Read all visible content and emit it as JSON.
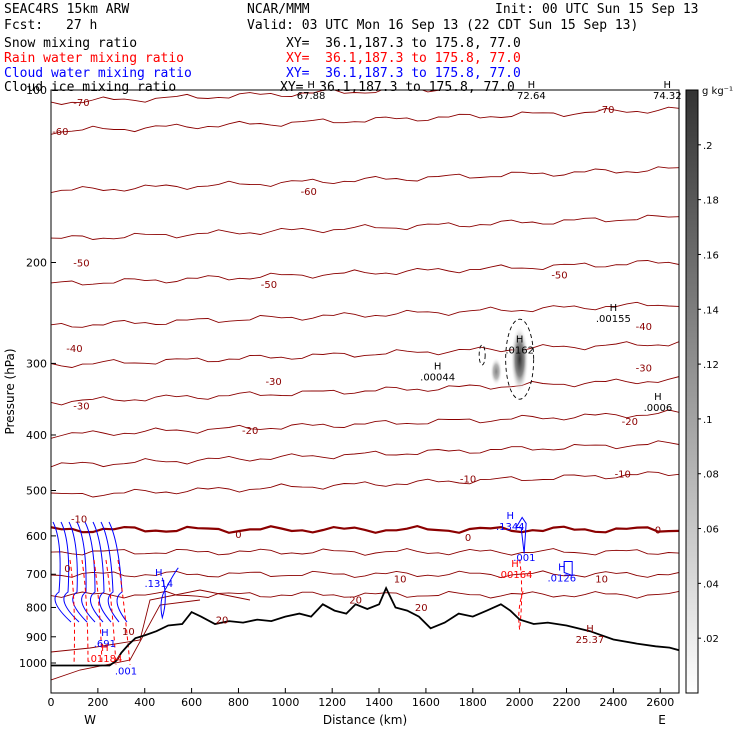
{
  "header": {
    "model": "SEAC4RS 15km ARW",
    "org": "NCAR/MMM",
    "init": "Init: 00 UTC Sun 15 Sep 13",
    "fcst_label": "Fcst:",
    "fcst_value": "27 h",
    "valid": "Valid: 03 UTC Mon 16 Sep 13 (22 CDT Sun 15 Sep 13)",
    "fields": [
      {
        "name": "Snow mixing ratio",
        "xy": "XY=  36.1,187.3 to 175.8, 77.0",
        "color": "#000000"
      },
      {
        "name": "Rain water mixing ratio",
        "xy": "XY=  36.1,187.3 to 175.8, 77.0",
        "color": "#ff0000"
      },
      {
        "name": "Cloud water mixing ratio",
        "xy": "XY=  36.1,187.3 to 175.8, 77.0",
        "color": "#0000ff"
      },
      {
        "name": "Cloud ice mixing ratio",
        "xy": "XY=  36.1,187.3 to 175.8, 77.0",
        "color": "#000000"
      }
    ]
  },
  "chart_data": {
    "type": "contour",
    "xlabel": "Distance (km)",
    "ylabel": "Pressure (hPa)",
    "xlim": [
      0,
      2680
    ],
    "ylim": [
      1000,
      100
    ],
    "y_scale": "log",
    "x_ticks": [
      "0",
      "200",
      "400",
      "600",
      "800",
      "1000",
      "1200",
      "1400",
      "1600",
      "1800",
      "2000",
      "2200",
      "2400",
      "2600"
    ],
    "y_ticks": [
      "100",
      "200",
      "300",
      "400",
      "500",
      "600",
      "700",
      "800",
      "900",
      "1000"
    ],
    "x_end_labels": {
      "left": "W",
      "right": "E"
    },
    "colorbar": {
      "unit": "g kg⁻¹",
      "ticks": [
        ".2",
        ".18",
        ".16",
        ".14",
        ".12",
        ".1",
        ".08",
        ".06",
        ".04",
        ".02"
      ],
      "position": "right"
    },
    "temperature_contours": {
      "color": "#8b0000",
      "labels": [
        {
          "value": "-70",
          "x": 130,
          "p": 105
        },
        {
          "value": "-70",
          "x": 2370,
          "p": 108
        },
        {
          "value": "-60",
          "x": 40,
          "p": 118
        },
        {
          "value": "-60",
          "x": 1100,
          "p": 150
        },
        {
          "value": "-50",
          "x": 130,
          "p": 200
        },
        {
          "value": "-50",
          "x": 930,
          "p": 218
        },
        {
          "value": "-50",
          "x": 2170,
          "p": 210
        },
        {
          "value": "-40",
          "x": 100,
          "p": 282
        },
        {
          "value": "-40",
          "x": 2530,
          "p": 258
        },
        {
          "value": "-30",
          "x": 130,
          "p": 355
        },
        {
          "value": "-30",
          "x": 950,
          "p": 322
        },
        {
          "value": "-30",
          "x": 2530,
          "p": 305
        },
        {
          "value": "-20",
          "x": 850,
          "p": 392
        },
        {
          "value": "-20",
          "x": 2470,
          "p": 378
        },
        {
          "value": "-10",
          "x": 1780,
          "p": 476
        },
        {
          "value": "-10",
          "x": 2440,
          "p": 467
        },
        {
          "value": "-10",
          "x": 120,
          "p": 560
        },
        {
          "value": "0",
          "x": 800,
          "p": 595
        },
        {
          "value": "0",
          "x": 1780,
          "p": 603
        },
        {
          "value": "0",
          "x": 2590,
          "p": 585
        },
        {
          "value": "0",
          "x": 70,
          "p": 682
        },
        {
          "value": "10",
          "x": 1490,
          "p": 712
        },
        {
          "value": "10",
          "x": 2350,
          "p": 712
        },
        {
          "value": "10",
          "x": 330,
          "p": 880
        },
        {
          "value": "20",
          "x": 730,
          "p": 840
        },
        {
          "value": "20",
          "x": 1300,
          "p": 775
        },
        {
          "value": "20",
          "x": 1580,
          "p": 798
        }
      ]
    },
    "extrema_labels": [
      {
        "mark": "H",
        "value": "67.88",
        "x": 1110,
        "p": 100,
        "color": "#000000"
      },
      {
        "mark": "H",
        "value": "72.64",
        "x": 2050,
        "p": 100,
        "color": "#000000"
      },
      {
        "mark": "H",
        "value": "74.32",
        "x": 2630,
        "p": 100,
        "color": "#000000"
      },
      {
        "mark": "H",
        "value": ".00044",
        "x": 1650,
        "p": 310,
        "color": "#000000"
      },
      {
        "mark": "H",
        "value": ".0162",
        "x": 2000,
        "p": 278,
        "color": "#000000"
      },
      {
        "mark": "H",
        "value": ".00155",
        "x": 2400,
        "p": 245,
        "color": "#000000"
      },
      {
        "mark": "H",
        "value": ".0006",
        "x": 2590,
        "p": 350,
        "color": "#000000"
      },
      {
        "mark": "H",
        "value": ".1344",
        "x": 1960,
        "p": 565,
        "color": "#0000ff"
      },
      {
        "mark": "",
        "value": ".001",
        "x": 2020,
        "p": 640,
        "color": "#0000ff"
      },
      {
        "mark": "H",
        "value": ".00164",
        "x": 1980,
        "p": 685,
        "color": "#ff0000"
      },
      {
        "mark": "H",
        "value": ".0126",
        "x": 2180,
        "p": 695,
        "color": "#0000ff"
      },
      {
        "mark": "H",
        "value": ".1314",
        "x": 460,
        "p": 710,
        "color": "#0000ff"
      },
      {
        "mark": "H",
        "value": "25.37",
        "x": 2300,
        "p": 890,
        "color": "#8b0000"
      },
      {
        "mark": "H",
        "value": ".691",
        "x": 230,
        "p": 905,
        "color": "#0000ff"
      },
      {
        "mark": "H",
        "value": ".01184",
        "x": 230,
        "p": 960,
        "color": "#ff0000"
      },
      {
        "mark": "",
        "value": ".001",
        "x": 320,
        "p": 1010,
        "color": "#0000ff"
      }
    ],
    "terrain": {
      "color": "#000000",
      "x": [
        0,
        250,
        280,
        300,
        330,
        360,
        400,
        450,
        500,
        560,
        600,
        640,
        700,
        760,
        820,
        880,
        940,
        1000,
        1060,
        1110,
        1160,
        1210,
        1260,
        1300,
        1350,
        1400,
        1430,
        1470,
        1520,
        1570,
        1620,
        1680,
        1740,
        1800,
        1860,
        1920,
        1960,
        2000,
        2060,
        2120,
        2200,
        2300,
        2400,
        2500,
        2580,
        2640,
        2680
      ],
      "p": [
        1010,
        1010,
        990,
        960,
        930,
        905,
        895,
        880,
        860,
        855,
        815,
        830,
        855,
        845,
        850,
        840,
        845,
        830,
        820,
        830,
        790,
        810,
        820,
        790,
        805,
        790,
        740,
        800,
        810,
        830,
        870,
        850,
        820,
        830,
        810,
        790,
        810,
        840,
        855,
        850,
        860,
        880,
        910,
        925,
        935,
        940,
        950
      ]
    }
  }
}
